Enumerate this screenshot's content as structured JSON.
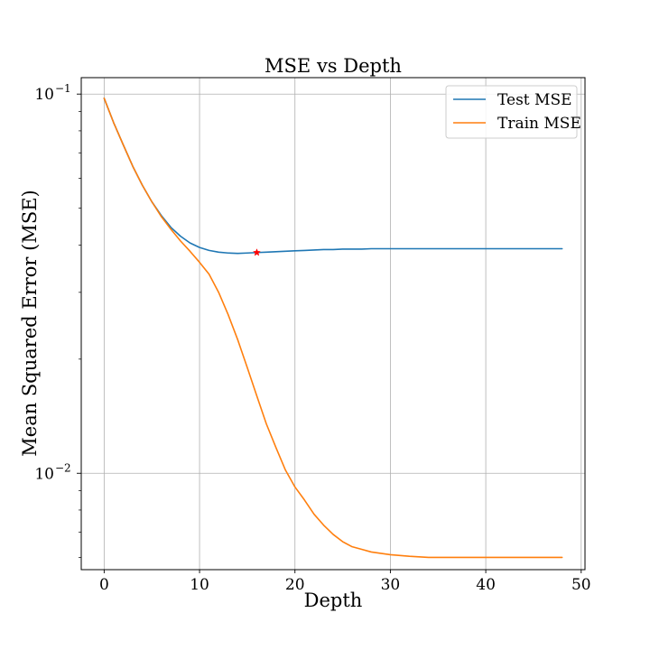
{
  "chart_data": {
    "type": "line",
    "title": "MSE vs Depth",
    "xlabel": "Depth",
    "ylabel": "Mean Squared Error (MSE)",
    "xlim": [
      -2.4,
      50.4
    ],
    "ylim": [
      0.00557,
      0.1105
    ],
    "yscale": "log",
    "grid": true,
    "legend_position": "top-right",
    "x_ticks": [
      {
        "value": 0,
        "label": "0"
      },
      {
        "value": 10,
        "label": "10"
      },
      {
        "value": 20,
        "label": "20"
      },
      {
        "value": 30,
        "label": "30"
      },
      {
        "value": 40,
        "label": "40"
      },
      {
        "value": 50,
        "label": "50"
      }
    ],
    "y_ticks": [
      {
        "value": 0.1,
        "base": "10",
        "exp": "−1"
      },
      {
        "value": 0.01,
        "base": "10",
        "exp": "−2"
      }
    ],
    "x": [
      0,
      1,
      2,
      3,
      4,
      5,
      6,
      7,
      8,
      9,
      10,
      11,
      12,
      13,
      14,
      15,
      16,
      17,
      18,
      19,
      20,
      21,
      22,
      23,
      24,
      25,
      26,
      27,
      28,
      29,
      30,
      31,
      32,
      33,
      34,
      35,
      36,
      37,
      38,
      39,
      40,
      41,
      42,
      43,
      44,
      45,
      46,
      47,
      48
    ],
    "series": [
      {
        "name": "Test MSE",
        "color": "#1f77b4",
        "values": [
          0.0975,
          0.084,
          0.0735,
          0.0645,
          0.0575,
          0.052,
          0.0478,
          0.0445,
          0.0422,
          0.0405,
          0.0394,
          0.0387,
          0.0383,
          0.0381,
          0.038,
          0.0381,
          0.0382,
          0.0383,
          0.0384,
          0.0385,
          0.0386,
          0.0387,
          0.0388,
          0.0389,
          0.0389,
          0.039,
          0.039,
          0.039,
          0.0391,
          0.0391,
          0.0391,
          0.0391,
          0.0391,
          0.0391,
          0.0391,
          0.0391,
          0.0391,
          0.0391,
          0.0391,
          0.0391,
          0.0391,
          0.0391,
          0.0391,
          0.0391,
          0.0391,
          0.0391,
          0.0391,
          0.0391,
          0.0391
        ]
      },
      {
        "name": "Train MSE",
        "color": "#ff7f0e",
        "values": [
          0.0975,
          0.084,
          0.0735,
          0.0645,
          0.0575,
          0.052,
          0.0475,
          0.044,
          0.041,
          0.0385,
          0.036,
          0.0335,
          0.03,
          0.0262,
          0.0225,
          0.019,
          0.016,
          0.0135,
          0.0117,
          0.0102,
          0.0092,
          0.0085,
          0.0078,
          0.0073,
          0.0069,
          0.0066,
          0.0064,
          0.0063,
          0.0062,
          0.00615,
          0.0061,
          0.00607,
          0.00604,
          0.00602,
          0.006,
          0.006,
          0.006,
          0.006,
          0.006,
          0.006,
          0.006,
          0.006,
          0.006,
          0.006,
          0.006,
          0.006,
          0.006,
          0.006,
          0.006
        ]
      }
    ],
    "marker": {
      "x": 16,
      "y": 0.0382,
      "color": "#ff0000",
      "symbol": "star"
    }
  }
}
